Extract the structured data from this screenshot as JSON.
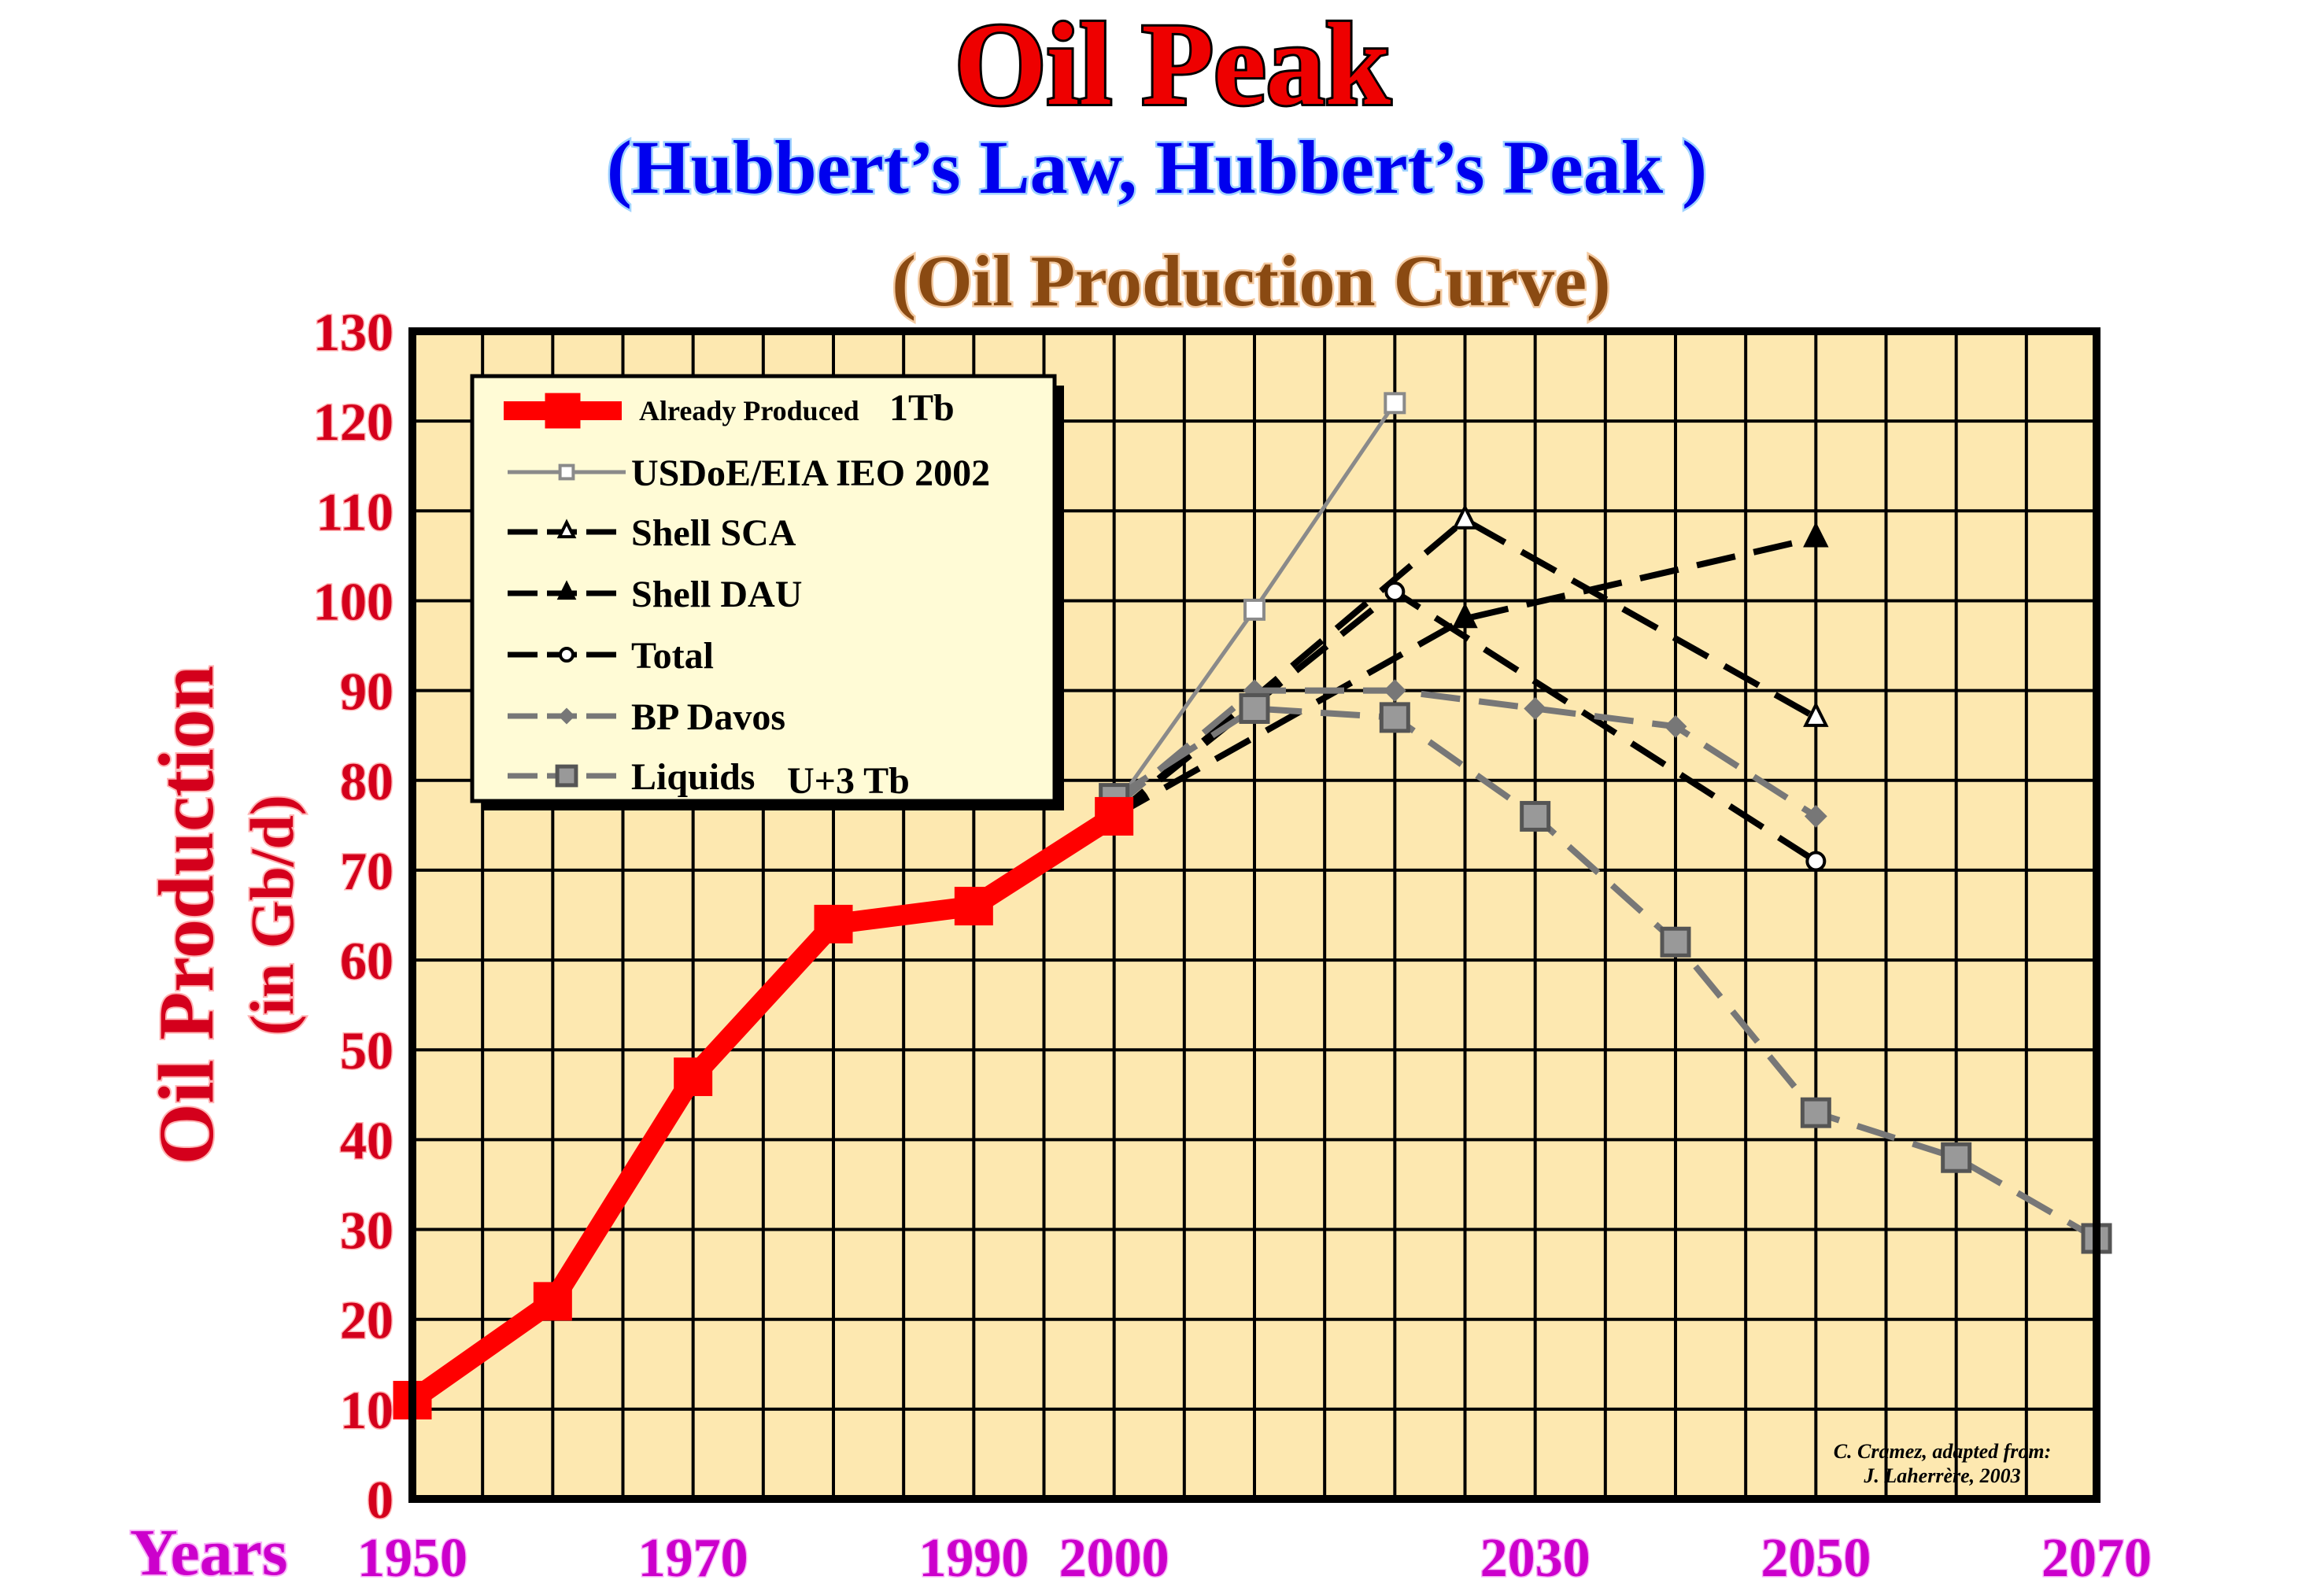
{
  "title": "Oil Peak",
  "subtitle": "(Hubbert’s Law, Hubbert’s Peak )",
  "subtitle2": "(Oil Production Curve)",
  "colors": {
    "title": "#ee0000",
    "subtitle": "#0000ee",
    "subtitle2": "#8a4a12",
    "ylabel": "#d4001c",
    "yticks": "#d4001c",
    "xlabel": "#cc00cc",
    "plot_bg": "#fde8b0",
    "already_produced": "#ff0000"
  },
  "credit": [
    "C. Cramez, adapted from:",
    "J. Laherrère, 2003"
  ],
  "chart_data": {
    "type": "line",
    "title": "Oil Peak",
    "xlabel": "Years",
    "ylabel": "Oil Production",
    "ylabel_unit": "(in Gb/d)",
    "xlim": [
      1950,
      2070
    ],
    "ylim": [
      0,
      130
    ],
    "xticks": [
      1950,
      1970,
      1990,
      2000,
      2030,
      2050,
      2070
    ],
    "yticks": [
      0,
      10,
      20,
      30,
      40,
      50,
      60,
      70,
      80,
      90,
      100,
      110,
      120,
      130
    ],
    "grid": true,
    "legend_position": "top-left",
    "series": [
      {
        "name": "Already Produced",
        "legend_suffix": "1Tb",
        "style": "red-thick-square",
        "x": [
          1950,
          1960,
          1970,
          1980,
          1990,
          2000
        ],
        "y": [
          11,
          22,
          47,
          64,
          66,
          76
        ]
      },
      {
        "name": "USDoE/EIA IEO 2002",
        "style": "gray-solid-open-square",
        "x": [
          2000,
          2010,
          2020
        ],
        "y": [
          77,
          99,
          122
        ]
      },
      {
        "name": "Shell SCA",
        "style": "black-dash-open-triangle",
        "x": [
          2000,
          2025,
          2050
        ],
        "y": [
          76,
          109,
          87
        ]
      },
      {
        "name": "Shell DAU",
        "style": "black-dash-filled-triangle",
        "x": [
          2000,
          2025,
          2050
        ],
        "y": [
          76,
          98,
          107
        ]
      },
      {
        "name": "Total",
        "style": "black-dash-open-circle",
        "x": [
          2000,
          2020,
          2050
        ],
        "y": [
          76,
          101,
          71
        ]
      },
      {
        "name": "BP Davos",
        "style": "gray-dash-diamond",
        "x": [
          2000,
          2010,
          2020,
          2030,
          2040,
          2050
        ],
        "y": [
          77,
          90,
          90,
          88,
          86,
          76
        ]
      },
      {
        "name": "Liquids",
        "legend_suffix": "U+3 Tb",
        "style": "gray-dash-filled-square",
        "x": [
          2000,
          2010,
          2020,
          2030,
          2040,
          2050,
          2060,
          2070
        ],
        "y": [
          78,
          88,
          87,
          76,
          62,
          43,
          38,
          29
        ]
      }
    ]
  }
}
